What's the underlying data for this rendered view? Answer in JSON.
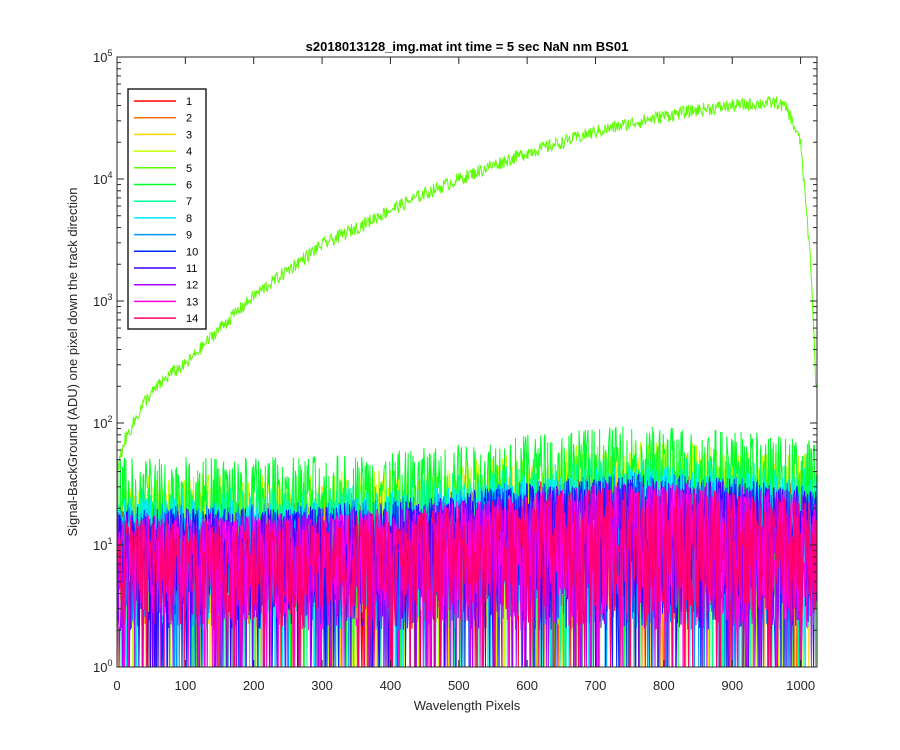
{
  "chart_data": {
    "type": "line",
    "title": "s2018013128_img.mat int time = 5 sec  NaN nm BS01",
    "xlabel": "Wavelength Pixels",
    "ylabel": "Signal-BackGround (ADU) one pixel down the track direction",
    "xlim": [
      0,
      1024
    ],
    "ylim": [
      1,
      100000
    ],
    "yscale": "log",
    "grid": false,
    "legend_position": "top-left",
    "x_ticks": [
      "0",
      "100",
      "200",
      "300",
      "400",
      "500",
      "600",
      "700",
      "800",
      "900",
      "1000"
    ],
    "y_ticks": [
      {
        "base": "10",
        "exp": "0"
      },
      {
        "base": "10",
        "exp": "1"
      },
      {
        "base": "10",
        "exp": "2"
      },
      {
        "base": "10",
        "exp": "3"
      },
      {
        "base": "10",
        "exp": "4"
      },
      {
        "base": "10",
        "exp": "5"
      }
    ],
    "series": [
      {
        "name": "1",
        "color": "#ff0000",
        "kind": "noise",
        "floor": 2,
        "peak": 40
      },
      {
        "name": "2",
        "color": "#ff6e00",
        "kind": "noise",
        "floor": 2,
        "peak": 40
      },
      {
        "name": "3",
        "color": "#ffd500",
        "kind": "noise",
        "floor": 2,
        "peak": 55
      },
      {
        "name": "4",
        "color": "#c3ff00",
        "kind": "noise",
        "floor": 2,
        "peak": 70
      },
      {
        "name": "5",
        "color": "#5cff00",
        "kind": "signal",
        "x": [
          0,
          10,
          20,
          40,
          60,
          80,
          100,
          150,
          200,
          250,
          300,
          350,
          400,
          450,
          500,
          550,
          600,
          650,
          700,
          750,
          800,
          850,
          900,
          950,
          965,
          980,
          1000,
          1015,
          1023
        ],
        "y": [
          40,
          70,
          90,
          150,
          200,
          260,
          300,
          600,
          1100,
          1800,
          2900,
          4000,
          5600,
          7600,
          10000,
          13000,
          16500,
          20000,
          24500,
          28500,
          33000,
          37000,
          40000,
          42000,
          42500,
          38000,
          20000,
          2000,
          180
        ]
      },
      {
        "name": "6",
        "color": "#00ff2b",
        "kind": "noise",
        "floor": 3,
        "peak": 95
      },
      {
        "name": "7",
        "color": "#00ff9b",
        "kind": "noise",
        "floor": 2,
        "peak": 55
      },
      {
        "name": "8",
        "color": "#00eaff",
        "kind": "noise",
        "floor": 2,
        "peak": 45
      },
      {
        "name": "9",
        "color": "#0095ff",
        "kind": "noise",
        "floor": 2,
        "peak": 40
      },
      {
        "name": "10",
        "color": "#0026ff",
        "kind": "noise",
        "floor": 2,
        "peak": 38
      },
      {
        "name": "11",
        "color": "#3c00ff",
        "kind": "noise",
        "floor": 2,
        "peak": 36
      },
      {
        "name": "12",
        "color": "#ab00ff",
        "kind": "noise",
        "floor": 2,
        "peak": 34
      },
      {
        "name": "13",
        "color": "#ff00e0",
        "kind": "noise",
        "floor": 2,
        "peak": 32
      },
      {
        "name": "14",
        "color": "#ff0071",
        "kind": "noise",
        "floor": 2,
        "peak": 30
      }
    ]
  }
}
